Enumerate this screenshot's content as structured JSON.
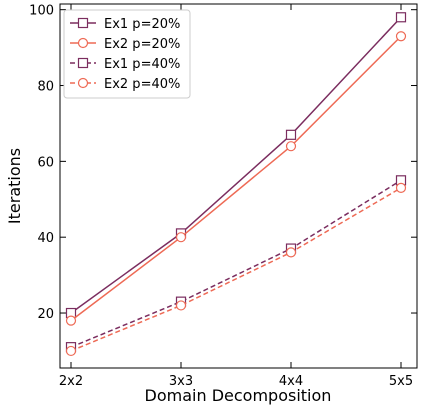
{
  "chart_data": {
    "type": "line",
    "title": "",
    "xlabel": "Domain Decomposition",
    "ylabel": "Iterations",
    "categories": [
      "2x2",
      "3x3",
      "4x4",
      "5x5"
    ],
    "ylim": [
      5.5,
      101.5
    ],
    "yticks": [
      20,
      40,
      60,
      80,
      100
    ],
    "grid": false,
    "legend_position": "top-left",
    "series": [
      {
        "name": "Ex1 p=20%",
        "values": [
          20,
          41,
          67,
          98
        ],
        "color": "#7b2d5f",
        "marker": "square",
        "linestyle": "solid"
      },
      {
        "name": "Ex2 p=20%",
        "values": [
          18,
          40,
          64,
          93
        ],
        "color": "#ee6a55",
        "marker": "circle",
        "linestyle": "solid"
      },
      {
        "name": "Ex1 p=40%",
        "values": [
          11,
          23,
          37,
          55
        ],
        "color": "#7b2d5f",
        "marker": "square",
        "linestyle": "dashed"
      },
      {
        "name": "Ex2 p=40%",
        "values": [
          10,
          22,
          36,
          53
        ],
        "color": "#ee6a55",
        "marker": "circle",
        "linestyle": "dashed"
      }
    ]
  }
}
